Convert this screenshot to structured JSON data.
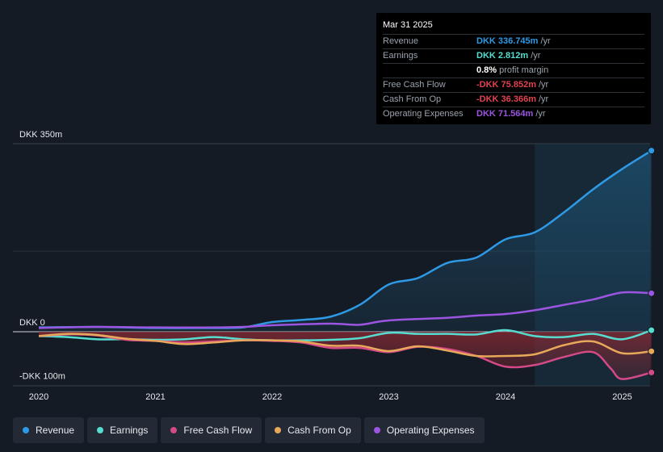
{
  "chart_data": {
    "type": "line",
    "x_ticks": [
      "2020",
      "2021",
      "2022",
      "2023",
      "2024",
      "2025"
    ],
    "y_tick_labels": [
      "DKK 350m",
      "DKK 0",
      "-DKK 100m"
    ],
    "ylim": [
      -100,
      350
    ],
    "unit": "DKK m",
    "highlight_from": 2024.25,
    "series": [
      {
        "name": "Revenue",
        "color": "#2e9ae5",
        "points": [
          [
            2020.0,
            8
          ],
          [
            2020.5,
            9
          ],
          [
            2021.0,
            7
          ],
          [
            2021.5,
            7
          ],
          [
            2021.75,
            8
          ],
          [
            2022.0,
            18
          ],
          [
            2022.25,
            22
          ],
          [
            2022.5,
            28
          ],
          [
            2022.75,
            50
          ],
          [
            2023.0,
            88
          ],
          [
            2023.25,
            100
          ],
          [
            2023.5,
            128
          ],
          [
            2023.75,
            138
          ],
          [
            2024.0,
            172
          ],
          [
            2024.25,
            185
          ],
          [
            2024.5,
            222
          ],
          [
            2024.75,
            265
          ],
          [
            2025.0,
            303
          ],
          [
            2025.25,
            337
          ]
        ]
      },
      {
        "name": "Earnings",
        "color": "#57ddd0",
        "points": [
          [
            2020.0,
            -8
          ],
          [
            2020.25,
            -10
          ],
          [
            2020.5,
            -14
          ],
          [
            2020.75,
            -14
          ],
          [
            2021.0,
            -15
          ],
          [
            2021.25,
            -14
          ],
          [
            2021.5,
            -10
          ],
          [
            2021.75,
            -14
          ],
          [
            2022.0,
            -16
          ],
          [
            2022.25,
            -16
          ],
          [
            2022.5,
            -15
          ],
          [
            2022.75,
            -12
          ],
          [
            2023.0,
            -2
          ],
          [
            2023.25,
            -4
          ],
          [
            2023.5,
            -4
          ],
          [
            2023.75,
            -5
          ],
          [
            2024.0,
            3
          ],
          [
            2024.25,
            -8
          ],
          [
            2024.5,
            -10
          ],
          [
            2024.75,
            -4
          ],
          [
            2025.0,
            -14
          ],
          [
            2025.25,
            2.8
          ]
        ]
      },
      {
        "name": "Free Cash Flow",
        "color": "#d44a86",
        "points": [
          [
            2020.0,
            -8
          ],
          [
            2020.25,
            -5
          ],
          [
            2020.5,
            -7
          ],
          [
            2020.75,
            -15
          ],
          [
            2021.0,
            -17
          ],
          [
            2021.25,
            -20
          ],
          [
            2021.5,
            -18
          ],
          [
            2021.75,
            -16
          ],
          [
            2022.0,
            -17
          ],
          [
            2022.25,
            -20
          ],
          [
            2022.5,
            -30
          ],
          [
            2022.75,
            -30
          ],
          [
            2023.0,
            -38
          ],
          [
            2023.25,
            -28
          ],
          [
            2023.5,
            -32
          ],
          [
            2023.75,
            -45
          ],
          [
            2024.0,
            -65
          ],
          [
            2024.25,
            -62
          ],
          [
            2024.5,
            -47
          ],
          [
            2024.75,
            -38
          ],
          [
            2024.9,
            -68
          ],
          [
            2025.0,
            -88
          ],
          [
            2025.25,
            -75.9
          ]
        ]
      },
      {
        "name": "Cash From Op",
        "color": "#e7a85a",
        "points": [
          [
            2020.0,
            -8
          ],
          [
            2020.25,
            -4
          ],
          [
            2020.5,
            -6
          ],
          [
            2020.75,
            -13
          ],
          [
            2021.0,
            -17
          ],
          [
            2021.25,
            -23
          ],
          [
            2021.5,
            -20
          ],
          [
            2021.75,
            -16
          ],
          [
            2022.0,
            -16
          ],
          [
            2022.25,
            -18
          ],
          [
            2022.5,
            -26
          ],
          [
            2022.75,
            -26
          ],
          [
            2023.0,
            -36
          ],
          [
            2023.25,
            -27
          ],
          [
            2023.5,
            -35
          ],
          [
            2023.75,
            -45
          ],
          [
            2024.0,
            -45
          ],
          [
            2024.25,
            -42
          ],
          [
            2024.5,
            -25
          ],
          [
            2024.75,
            -18
          ],
          [
            2025.0,
            -40
          ],
          [
            2025.25,
            -36.4
          ]
        ]
      },
      {
        "name": "Operating Expenses",
        "color": "#9b55e0",
        "points": [
          [
            2020.0,
            7
          ],
          [
            2020.5,
            9
          ],
          [
            2021.0,
            8
          ],
          [
            2021.5,
            8
          ],
          [
            2021.75,
            9
          ],
          [
            2022.0,
            12
          ],
          [
            2022.5,
            15
          ],
          [
            2022.75,
            13
          ],
          [
            2023.0,
            21
          ],
          [
            2023.5,
            26
          ],
          [
            2023.75,
            30
          ],
          [
            2024.0,
            33
          ],
          [
            2024.25,
            40
          ],
          [
            2024.5,
            50
          ],
          [
            2024.75,
            60
          ],
          [
            2025.0,
            73
          ],
          [
            2025.25,
            71.6
          ]
        ]
      }
    ]
  },
  "tooltip": {
    "date": "Mar 31 2025",
    "rows": [
      {
        "label": "Revenue",
        "value": "DKK 336.745m",
        "unit": "/yr",
        "color": "#2e9ae5"
      },
      {
        "label": "Earnings",
        "value": "DKK 2.812m",
        "unit": "/yr",
        "color": "#57ddd0"
      },
      {
        "label": "",
        "value": "0.8%",
        "unit": "profit margin",
        "color": "#ffffff"
      },
      {
        "label": "Free Cash Flow",
        "value": "-DKK 75.852m",
        "unit": "/yr",
        "color": "#e0424f"
      },
      {
        "label": "Cash From Op",
        "value": "-DKK 36.366m",
        "unit": "/yr",
        "color": "#e0424f"
      },
      {
        "label": "Operating Expenses",
        "value": "DKK 71.564m",
        "unit": "/yr",
        "color": "#9b55e0"
      }
    ]
  },
  "legend": [
    {
      "label": "Revenue",
      "color": "#2e9ae5"
    },
    {
      "label": "Earnings",
      "color": "#57ddd0"
    },
    {
      "label": "Free Cash Flow",
      "color": "#d44a86"
    },
    {
      "label": "Cash From Op",
      "color": "#e7a85a"
    },
    {
      "label": "Operating Expenses",
      "color": "#9b55e0"
    }
  ]
}
